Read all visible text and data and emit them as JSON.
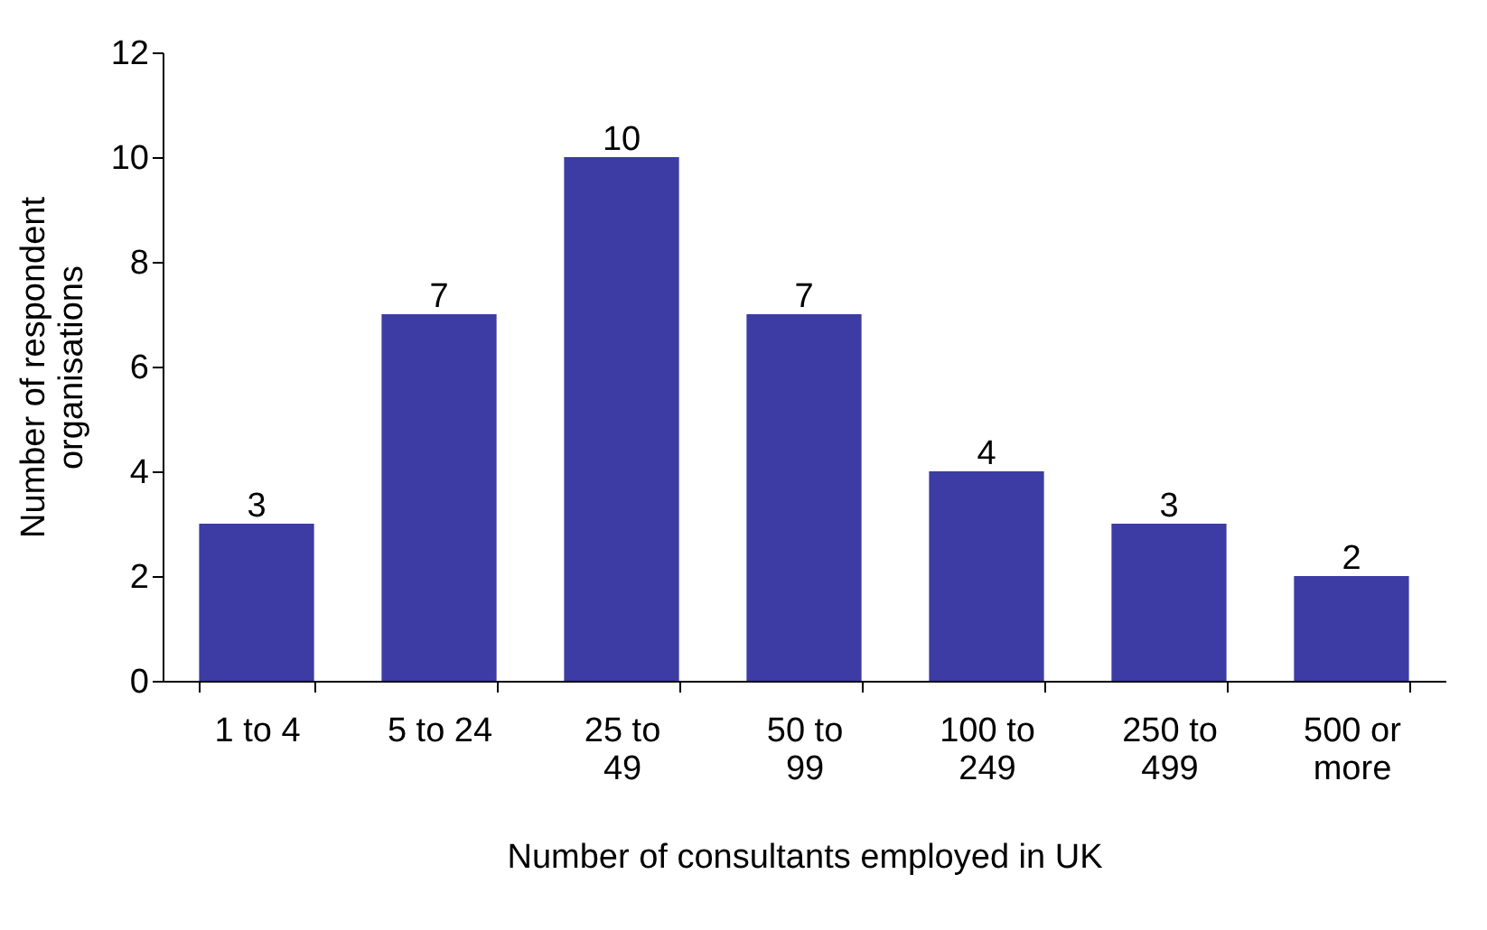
{
  "chart_data": {
    "type": "bar",
    "xlabel": "Number of consultants employed in UK",
    "ylabel": "Number of respondent organisations",
    "categories": [
      "1 to 4",
      "5 to 24",
      "25 to 49",
      "50 to 99",
      "100 to 249",
      "250 to 499",
      "500 or more"
    ],
    "values": [
      3,
      7,
      10,
      7,
      4,
      3,
      2
    ],
    "color": "#3c3ca4",
    "ylim": [
      0,
      12
    ],
    "yticks": [
      0,
      2,
      4,
      6,
      8,
      10,
      12
    ],
    "grid": false,
    "data_labels": true
  }
}
